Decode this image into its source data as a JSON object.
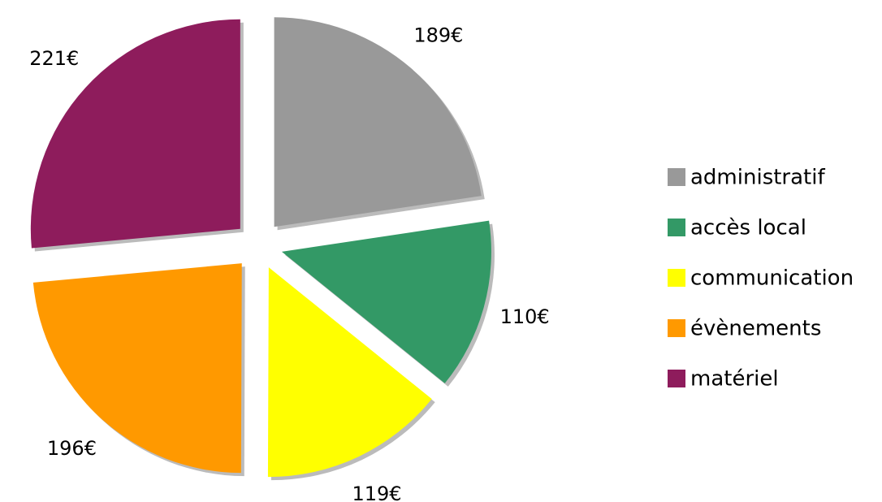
{
  "chart_data": {
    "type": "pie",
    "categories": [
      "administratif",
      "accès local",
      "communication",
      "évènements",
      "matériel"
    ],
    "values": [
      189,
      110,
      119,
      196,
      221
    ],
    "value_labels": [
      "189€",
      "110€",
      "119€",
      "196€",
      "221€"
    ],
    "colors": [
      "#999999",
      "#339966",
      "#ffff00",
      "#ff9900",
      "#8e1c5c"
    ],
    "legend": "right"
  }
}
